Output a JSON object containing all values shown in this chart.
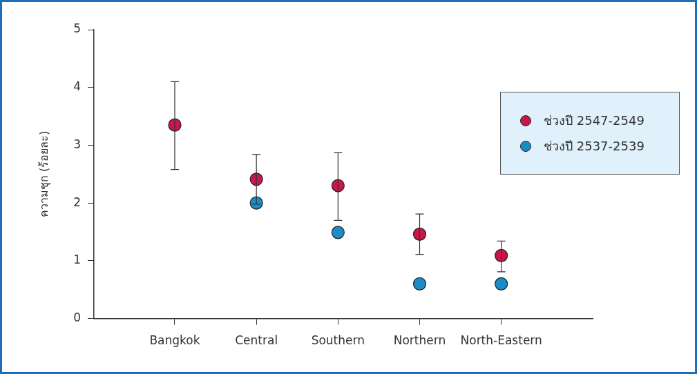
{
  "chart_data": {
    "type": "scatter",
    "ylabel": "ความชุก (ร้อยละ)",
    "categories": [
      "Bangkok",
      "Central",
      "Southern",
      "Northern",
      "North-Eastern"
    ],
    "ylim": [
      0,
      5
    ],
    "yticks": [
      0,
      1,
      2,
      3,
      4,
      5
    ],
    "grid": false,
    "legend": "top right",
    "marker": "circle",
    "series": [
      {
        "name": "ช่วงปี 2547-2549",
        "color": "#c8174a",
        "values": [
          3.35,
          2.41,
          2.3,
          1.46,
          1.09
        ],
        "errors": [
          [
            2.58,
            4.1
          ],
          [
            1.98,
            2.84
          ],
          [
            1.7,
            2.87
          ],
          [
            1.11,
            1.81
          ],
          [
            0.81,
            1.34
          ]
        ]
      },
      {
        "name": "ช่วงปี 2537-2539",
        "color": "#1a8cc8",
        "values": [
          null,
          2.0,
          1.49,
          0.6,
          0.6
        ]
      }
    ]
  }
}
